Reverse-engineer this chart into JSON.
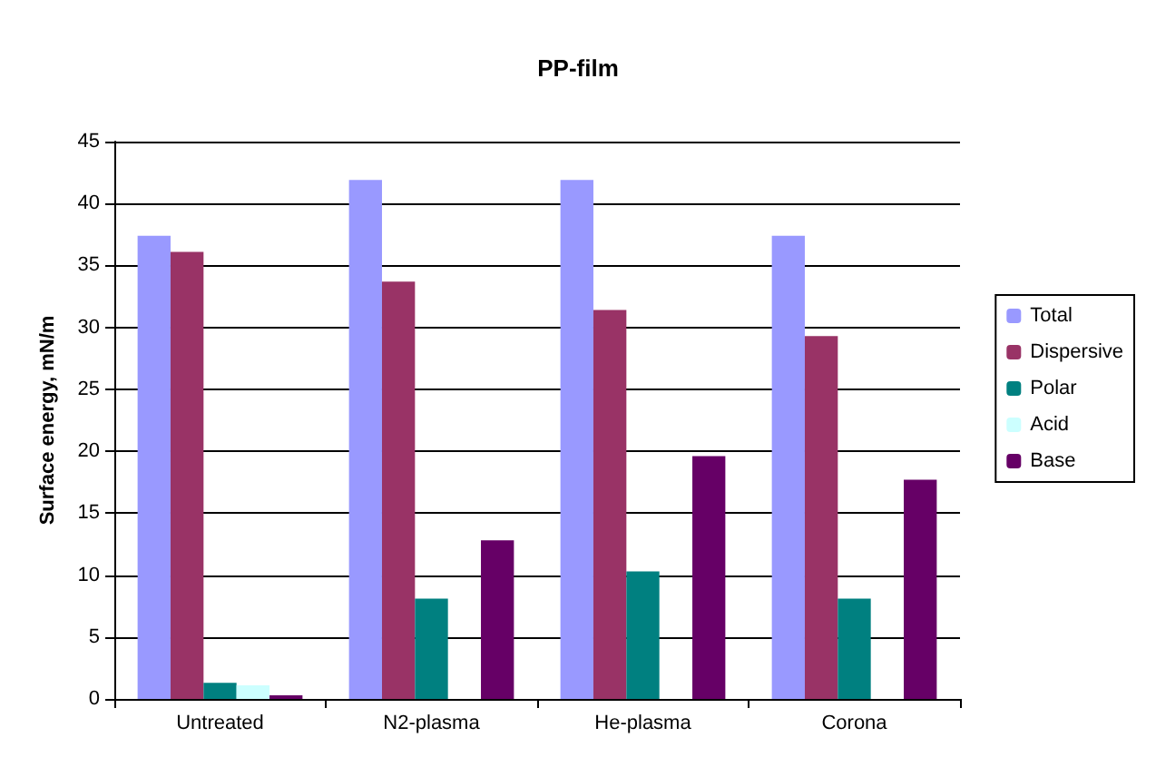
{
  "chart_data": {
    "type": "bar",
    "title": "PP-film",
    "ylabel": "Surface energy, mN/m",
    "categories": [
      "Untreated",
      "N2-plasma",
      "He-plasma",
      "Corona"
    ],
    "series": [
      {
        "name": "Total",
        "color": "#9999ff",
        "values": [
          37.4,
          41.9,
          41.9,
          37.4
        ]
      },
      {
        "name": "Dispersive",
        "color": "#993366",
        "values": [
          36.1,
          33.7,
          31.4,
          29.3
        ]
      },
      {
        "name": "Polar",
        "color": "#008080",
        "values": [
          1.3,
          8.1,
          10.3,
          8.1
        ]
      },
      {
        "name": "Acid",
        "color": "#ccffff",
        "values": [
          1.1,
          null,
          null,
          null
        ]
      },
      {
        "name": "Base",
        "color": "#660066",
        "values": [
          0.3,
          12.8,
          19.6,
          17.7
        ]
      }
    ],
    "ylim": [
      0,
      45
    ],
    "yticks": [
      0,
      5,
      10,
      15,
      20,
      25,
      30,
      35,
      40,
      45
    ],
    "grid": "y",
    "legend": "right"
  }
}
